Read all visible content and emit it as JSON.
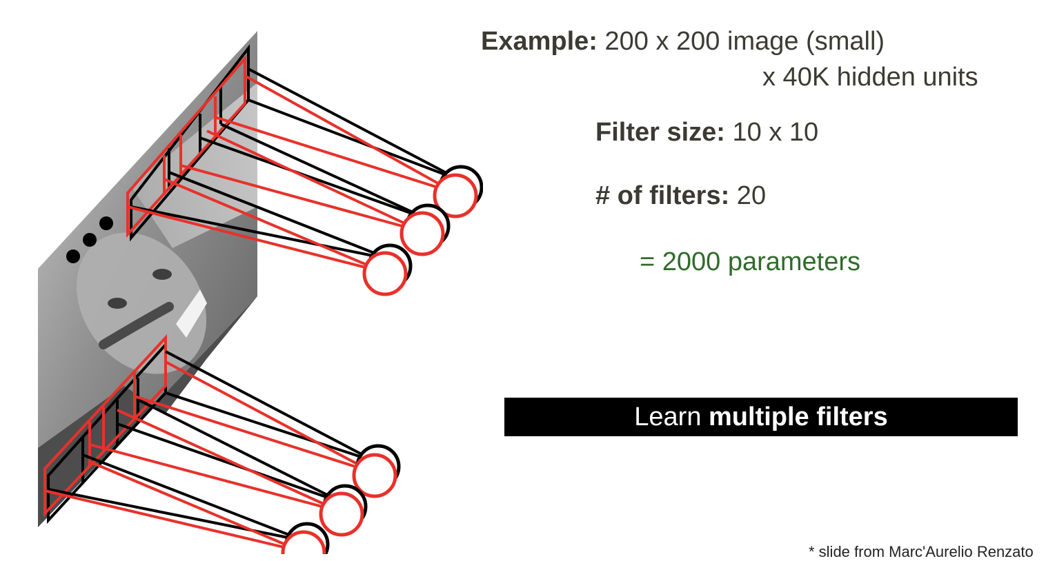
{
  "example": {
    "label": "Example:",
    "value": " 200 x 200 image (small)",
    "hidden_units": "x 40K hidden units"
  },
  "filter_size": {
    "label": "Filter size:",
    "value": " 10 x 10"
  },
  "num_filters": {
    "label": "# of filters:",
    "value": " 20"
  },
  "params": "= 2000 parameters",
  "banner": {
    "text_regular": "Learn ",
    "text_bold": "multiple filters"
  },
  "credit": "* slide from Marc'Aurelio Renzato",
  "colors": {
    "filter_red": "#e8312a",
    "outline_black": "#000000",
    "params_green": "#2f6b2a",
    "text_dark": "#3b3a33",
    "banner_bg": "#000000"
  },
  "icons": {
    "image": "portrait-photo-plane",
    "units": "hidden-unit-circles"
  }
}
